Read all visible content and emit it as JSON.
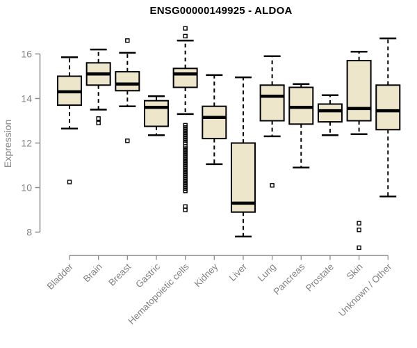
{
  "chart_data": {
    "type": "boxplot",
    "title": "ENSG00000149925 - ALDOA",
    "ylabel": "Expression",
    "xlabel": "",
    "yticks": [
      8,
      10,
      12,
      14,
      16
    ],
    "ylim": [
      7.0,
      17.5
    ],
    "grid": false,
    "legend": "none",
    "categories": [
      "Bladder",
      "Brain",
      "Breast",
      "Gastric",
      "Hematopoietic cells",
      "Kidney",
      "Liver",
      "Lung",
      "Pancreas",
      "Prostate",
      "Skin",
      "Unknown / Other"
    ],
    "boxes": [
      {
        "category": "Bladder",
        "whisker_low": 12.65,
        "q1": 13.7,
        "median": 14.3,
        "q3": 15.0,
        "whisker_high": 15.85,
        "outliers": [
          10.25
        ]
      },
      {
        "category": "Brain",
        "whisker_low": 13.5,
        "q1": 14.6,
        "median": 15.1,
        "q3": 15.6,
        "whisker_high": 16.2,
        "outliers": [
          13.1,
          12.9
        ]
      },
      {
        "category": "Breast",
        "whisker_low": 13.65,
        "q1": 14.35,
        "median": 14.65,
        "q3": 15.2,
        "whisker_high": 16.05,
        "outliers": [
          16.6,
          12.1
        ]
      },
      {
        "category": "Gastric",
        "whisker_low": 12.35,
        "q1": 12.75,
        "median": 13.6,
        "q3": 13.9,
        "whisker_high": 14.1,
        "outliers": []
      },
      {
        "category": "Hematopoietic cells",
        "whisker_low": 13.3,
        "q1": 14.5,
        "median": 15.1,
        "q3": 15.35,
        "whisker_high": 16.6,
        "outliers": [
          17.15,
          16.8,
          12.8,
          12.7,
          12.6,
          12.5,
          12.4,
          12.3,
          12.2,
          12.1,
          12.0,
          11.85,
          11.75,
          11.65,
          11.55,
          11.45,
          11.35,
          11.25,
          11.15,
          11.05,
          10.95,
          10.85,
          10.75,
          10.65,
          10.55,
          10.45,
          10.35,
          10.25,
          10.15,
          10.05,
          9.95,
          9.85,
          9.15,
          9.0
        ]
      },
      {
        "category": "Kidney",
        "whisker_low": 11.05,
        "q1": 12.2,
        "median": 13.15,
        "q3": 13.65,
        "whisker_high": 15.05,
        "outliers": []
      },
      {
        "category": "Liver",
        "whisker_low": 7.8,
        "q1": 8.9,
        "median": 9.3,
        "q3": 12.0,
        "whisker_high": 14.95,
        "outliers": []
      },
      {
        "category": "Lung",
        "whisker_low": 12.3,
        "q1": 13.0,
        "median": 14.1,
        "q3": 14.6,
        "whisker_high": 15.9,
        "outliers": [
          10.1
        ]
      },
      {
        "category": "Pancreas",
        "whisker_low": 10.9,
        "q1": 12.85,
        "median": 13.6,
        "q3": 14.5,
        "whisker_high": 14.65,
        "outliers": []
      },
      {
        "category": "Prostate",
        "whisker_low": 12.35,
        "q1": 12.95,
        "median": 13.45,
        "q3": 13.75,
        "whisker_high": 14.15,
        "outliers": []
      },
      {
        "category": "Skin",
        "whisker_low": 12.4,
        "q1": 13.0,
        "median": 13.55,
        "q3": 15.7,
        "whisker_high": 16.1,
        "outliers": [
          8.4,
          8.1,
          7.3
        ]
      },
      {
        "category": "Unknown / Other",
        "whisker_low": 9.6,
        "q1": 12.6,
        "median": 13.45,
        "q3": 14.6,
        "whisker_high": 16.7,
        "outliers": []
      }
    ],
    "colors": {
      "box_fill": "#EDE6CB",
      "box_border": "#000000",
      "median": "#000000",
      "whisker": "#000000",
      "outlier": "#000000",
      "axis_line": "#8c8c8c",
      "tick_text": "#828282",
      "title_text": "#000000",
      "background": "#FFFFFF"
    }
  }
}
